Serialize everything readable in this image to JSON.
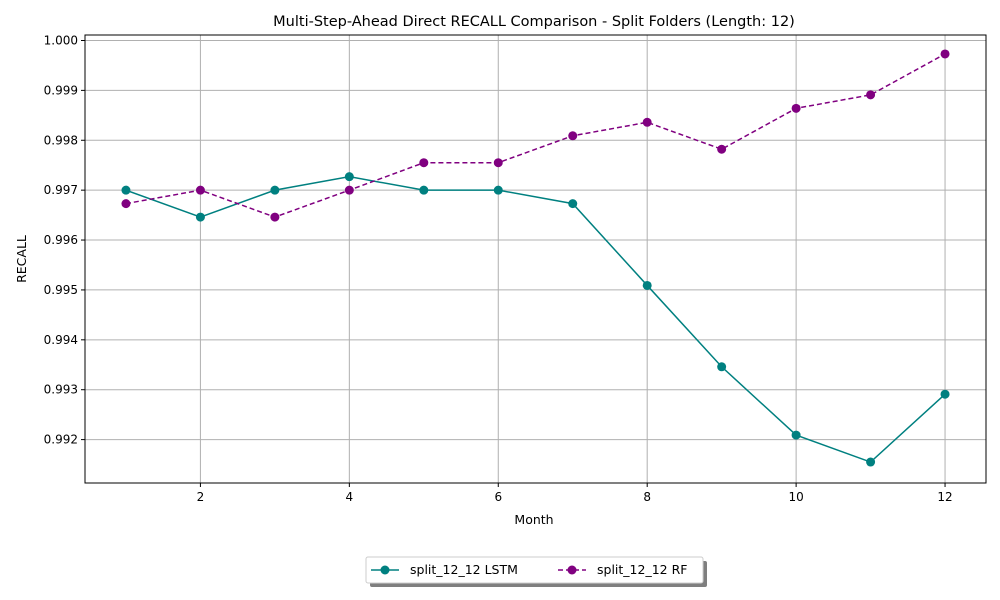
{
  "chart_data": {
    "type": "line",
    "title": "Multi-Step-Ahead Direct RECALL Comparison - Split Folders (Length: 12)",
    "xlabel": "Month",
    "ylabel": "RECALL",
    "x": [
      1,
      2,
      3,
      4,
      5,
      6,
      7,
      8,
      9,
      10,
      11,
      12
    ],
    "xlim": [
      0.45,
      12.55
    ],
    "ylim": [
      0.99113,
      1.00011
    ],
    "x_ticks": [
      2,
      4,
      6,
      8,
      10,
      12
    ],
    "x_tick_labels": [
      "2",
      "4",
      "6",
      "8",
      "10",
      "12"
    ],
    "y_ticks": [
      0.992,
      0.993,
      0.994,
      0.995,
      0.996,
      0.997,
      0.998,
      0.999,
      1.0
    ],
    "y_tick_labels": [
      "0.992",
      "0.993",
      "0.994",
      "0.995",
      "0.996",
      "0.997",
      "0.998",
      "0.999",
      "1.000"
    ],
    "grid": true,
    "legend_position": "bottom-center",
    "series": [
      {
        "name": "split_12_12 LSTM",
        "color": "#008080",
        "line_style": "solid",
        "marker": "circle",
        "values": [
          0.997,
          0.99646,
          0.997,
          0.99727,
          0.997,
          0.997,
          0.99673,
          0.99509,
          0.99346,
          0.99209,
          0.99155,
          0.99291
        ]
      },
      {
        "name": "split_12_12 RF",
        "color": "#800080",
        "line_style": "dashed",
        "marker": "circle",
        "values": [
          0.99673,
          0.997,
          0.99646,
          0.997,
          0.99755,
          0.99755,
          0.99809,
          0.99836,
          0.99782,
          0.99864,
          0.99891,
          0.99973
        ]
      }
    ]
  }
}
